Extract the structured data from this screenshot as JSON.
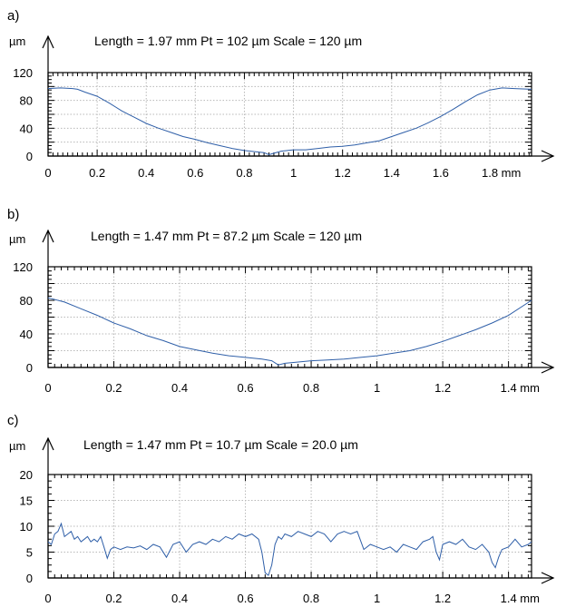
{
  "chart_data": [
    {
      "type": "line",
      "panel_label": "a)",
      "y_unit": "µm",
      "x_unit": "mm",
      "info": "Length = 1.97 mm  Pt = 102 µm  Scale = 120 µm",
      "xlim": [
        0,
        1.97
      ],
      "ylim": [
        0,
        120
      ],
      "x_ticks": [
        0,
        0.2,
        0.4,
        0.6,
        0.8,
        1,
        1.2,
        1.4,
        1.6,
        1.8
      ],
      "x_tick_labels": [
        "0",
        "0.2",
        "0.4",
        "0.6",
        "0.8",
        "1",
        "1.2",
        "1.4",
        "1.6",
        "1.8 mm"
      ],
      "y_ticks": [
        0,
        20,
        40,
        60,
        80,
        100,
        120
      ],
      "y_tick_labels": [
        "0",
        "",
        "40",
        "",
        "80",
        "",
        "120"
      ],
      "grid": true,
      "series": [
        {
          "color": "#2f5fa8",
          "x": [
            0,
            0.05,
            0.1,
            0.12,
            0.15,
            0.2,
            0.25,
            0.3,
            0.35,
            0.4,
            0.45,
            0.5,
            0.55,
            0.6,
            0.65,
            0.7,
            0.75,
            0.8,
            0.85,
            0.88,
            0.9,
            0.92,
            0.95,
            1.0,
            1.05,
            1.1,
            1.15,
            1.2,
            1.25,
            1.3,
            1.35,
            1.4,
            1.45,
            1.5,
            1.55,
            1.6,
            1.65,
            1.7,
            1.75,
            1.8,
            1.85,
            1.9,
            1.97
          ],
          "y": [
            97,
            98,
            97,
            96,
            92,
            86,
            76,
            65,
            56,
            47,
            40,
            34,
            28,
            24,
            19,
            15,
            11,
            8,
            6,
            5,
            2,
            4,
            7,
            9,
            9,
            11,
            13,
            14,
            16,
            19,
            22,
            28,
            34,
            40,
            48,
            57,
            67,
            78,
            88,
            95,
            98,
            97,
            96
          ]
        }
      ]
    },
    {
      "type": "line",
      "panel_label": "b)",
      "y_unit": "µm",
      "x_unit": "mm",
      "info": "Length = 1.47 mm  Pt = 87.2 µm  Scale = 120 µm",
      "xlim": [
        0,
        1.47
      ],
      "ylim": [
        0,
        120
      ],
      "x_ticks": [
        0,
        0.2,
        0.4,
        0.6,
        0.8,
        1,
        1.2,
        1.4
      ],
      "x_tick_labels": [
        "0",
        "0.2",
        "0.4",
        "0.6",
        "0.8",
        "1",
        "1.2",
        "1.4 mm"
      ],
      "y_ticks": [
        0,
        20,
        40,
        60,
        80,
        100,
        120
      ],
      "y_tick_labels": [
        "0",
        "",
        "40",
        "",
        "80",
        "",
        "120"
      ],
      "grid": true,
      "series": [
        {
          "color": "#2f5fa8",
          "x": [
            0,
            0.05,
            0.1,
            0.15,
            0.2,
            0.25,
            0.3,
            0.35,
            0.4,
            0.45,
            0.5,
            0.55,
            0.6,
            0.65,
            0.68,
            0.7,
            0.72,
            0.75,
            0.8,
            0.85,
            0.9,
            0.95,
            1.0,
            1.05,
            1.1,
            1.15,
            1.2,
            1.25,
            1.3,
            1.35,
            1.4,
            1.47
          ],
          "y": [
            83,
            78,
            70,
            62,
            53,
            46,
            38,
            32,
            25,
            21,
            17,
            14,
            12,
            10,
            8,
            3,
            5,
            6,
            8,
            9,
            10,
            12,
            14,
            17,
            20,
            25,
            31,
            38,
            45,
            53,
            62,
            80
          ]
        }
      ]
    },
    {
      "type": "line",
      "panel_label": "c)",
      "y_unit": "µm",
      "x_unit": "mm",
      "info": "Length = 1.47 mm  Pt = 10.7 µm  Scale = 20.0 µm",
      "xlim": [
        0,
        1.47
      ],
      "ylim": [
        0,
        20
      ],
      "x_ticks": [
        0,
        0.2,
        0.4,
        0.6,
        0.8,
        1,
        1.2,
        1.4
      ],
      "x_tick_labels": [
        "0",
        "0.2",
        "0.4",
        "0.6",
        "0.8",
        "1",
        "1.2",
        "1.4 mm"
      ],
      "y_ticks": [
        0,
        5,
        10,
        15,
        20
      ],
      "y_tick_labels": [
        "0",
        "5",
        "10",
        "15",
        "20"
      ],
      "grid": true,
      "series": [
        {
          "color": "#2f5fa8",
          "x": [
            0,
            0.01,
            0.02,
            0.03,
            0.04,
            0.05,
            0.06,
            0.07,
            0.08,
            0.09,
            0.1,
            0.11,
            0.12,
            0.13,
            0.14,
            0.15,
            0.16,
            0.17,
            0.18,
            0.19,
            0.2,
            0.22,
            0.24,
            0.26,
            0.28,
            0.3,
            0.32,
            0.34,
            0.36,
            0.38,
            0.4,
            0.42,
            0.44,
            0.46,
            0.48,
            0.5,
            0.52,
            0.54,
            0.56,
            0.58,
            0.6,
            0.62,
            0.64,
            0.65,
            0.66,
            0.67,
            0.68,
            0.69,
            0.7,
            0.71,
            0.72,
            0.74,
            0.76,
            0.78,
            0.8,
            0.82,
            0.84,
            0.86,
            0.88,
            0.9,
            0.92,
            0.94,
            0.96,
            0.98,
            1.0,
            1.02,
            1.04,
            1.06,
            1.08,
            1.1,
            1.12,
            1.14,
            1.16,
            1.17,
            1.18,
            1.19,
            1.2,
            1.22,
            1.24,
            1.26,
            1.28,
            1.3,
            1.32,
            1.34,
            1.35,
            1.36,
            1.37,
            1.38,
            1.4,
            1.42,
            1.44,
            1.46,
            1.47
          ],
          "y": [
            7.0,
            6.5,
            8.5,
            9.0,
            10.5,
            8.0,
            8.5,
            9.0,
            7.5,
            8.0,
            7.0,
            7.5,
            8.0,
            7.0,
            7.5,
            7.0,
            8.0,
            6.0,
            3.8,
            5.5,
            6.0,
            5.5,
            6.0,
            5.8,
            6.2,
            5.5,
            6.5,
            6.0,
            4.0,
            6.5,
            7.0,
            5.0,
            6.5,
            7.0,
            6.5,
            7.5,
            7.0,
            8.0,
            7.5,
            8.5,
            8.0,
            8.5,
            7.5,
            5.0,
            1.0,
            0.5,
            2.5,
            6.5,
            8.0,
            7.5,
            8.5,
            8.0,
            9.0,
            8.5,
            8.0,
            9.0,
            8.5,
            7.0,
            8.5,
            9.0,
            8.5,
            9.0,
            5.5,
            6.5,
            6.0,
            5.5,
            6.0,
            5.0,
            6.5,
            6.0,
            5.5,
            7.0,
            7.5,
            8.0,
            5.0,
            3.5,
            6.5,
            7.0,
            6.5,
            7.5,
            6.0,
            5.5,
            6.5,
            5.0,
            3.0,
            2.0,
            4.0,
            5.5,
            6.0,
            7.5,
            6.0,
            6.5,
            7.0
          ]
        }
      ]
    }
  ]
}
